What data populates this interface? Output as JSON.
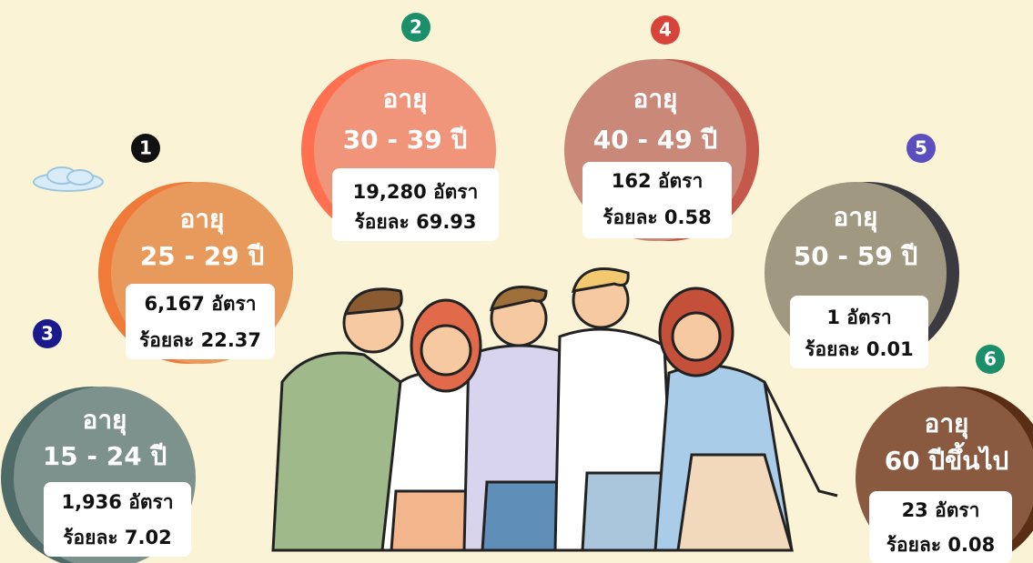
{
  "groups": [
    {
      "badge": "1",
      "title": "อายุ",
      "range": "25 - 29 ปี",
      "count": "6,167 อัตรา",
      "percent": "ร้อยละ 22.37"
    },
    {
      "badge": "2",
      "title": "อายุ",
      "range": "30 - 39 ปี",
      "count": "19,280 อัตรา",
      "percent": "ร้อยละ 69.93"
    },
    {
      "badge": "3",
      "title": "อายุ",
      "range": "15 - 24 ปี",
      "count": "1,936 อัตรา",
      "percent": "ร้อยละ 7.02"
    },
    {
      "badge": "4",
      "title": "อายุ",
      "range": "40 - 49 ปี",
      "count": "162 อัตรา",
      "percent": "ร้อยละ 0.58"
    },
    {
      "badge": "5",
      "title": "อายุ",
      "range": "50 - 59 ปี",
      "count": "1 อัตรา",
      "percent": "ร้อยละ 0.01"
    },
    {
      "badge": "6",
      "title": "อายุ",
      "range": "60 ปีขึ้นไป",
      "count": "23 อัตรา",
      "percent": "ร้อยละ 0.08"
    }
  ]
}
